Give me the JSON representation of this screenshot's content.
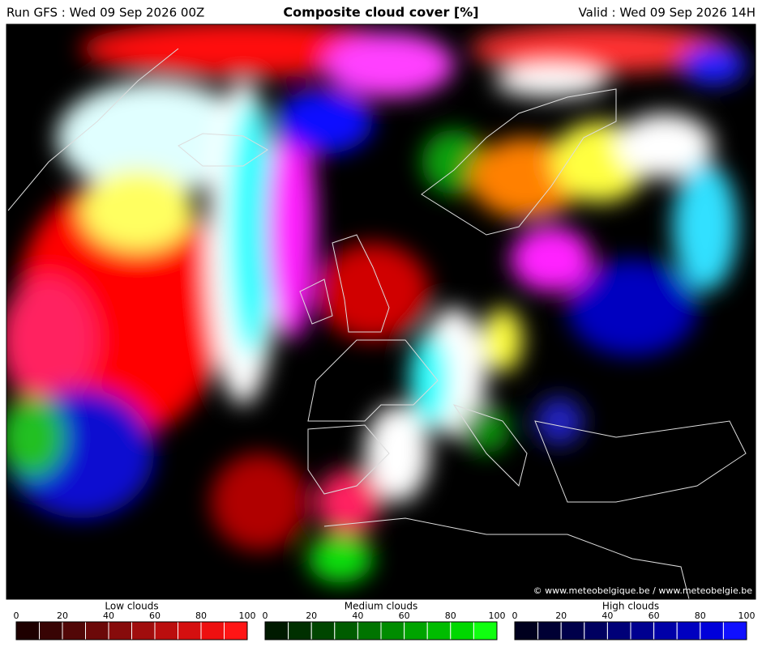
{
  "header": {
    "run": "Run GFS : Wed 09 Sep 2026 00Z",
    "title": "Composite cloud cover [%]",
    "valid": "Valid : Wed 09 Sep 2026 14H"
  },
  "copyright": "© www.meteobelgique.be / www.meteobelgie.be",
  "legends": [
    {
      "label": "Low clouds",
      "ticks": [
        0,
        20,
        40,
        60,
        80,
        100
      ],
      "colors": [
        "#1e0000",
        "#380404",
        "#520707",
        "#6c0909",
        "#870b0b",
        "#a10d0d",
        "#bb0e0e",
        "#d50f0f",
        "#ee1010",
        "#ff1515"
      ]
    },
    {
      "label": "Medium clouds",
      "ticks": [
        0,
        20,
        40,
        60,
        80,
        100
      ],
      "colors": [
        "#001a00",
        "#003000",
        "#004600",
        "#005c00",
        "#007400",
        "#008c00",
        "#00a400",
        "#00bc00",
        "#00d800",
        "#10ff10"
      ]
    },
    {
      "label": "High clouds",
      "ticks": [
        0,
        20,
        40,
        60,
        80,
        100
      ],
      "colors": [
        "#00001e",
        "#000034",
        "#00004a",
        "#000060",
        "#000078",
        "#000090",
        "#0000a8",
        "#0000c0",
        "#0000da",
        "#1010ff"
      ]
    }
  ]
}
